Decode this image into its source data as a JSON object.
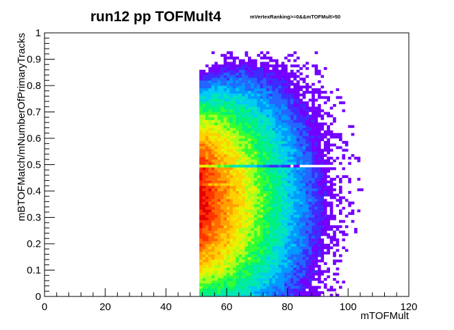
{
  "chart_data": {
    "type": "heatmap",
    "title": "run12 pp TOFMult4",
    "subtitle": "mVertexRanking>=0&&mTOFMult>50",
    "xlabel": "mTOFMult",
    "ylabel": "mBTOFMatch/mNumberOfPrimaryTracks",
    "xlim": [
      0,
      120
    ],
    "ylim": [
      0,
      1
    ],
    "x_ticks": [
      "0",
      "20",
      "40",
      "60",
      "80",
      "100",
      "120"
    ],
    "y_ticks": [
      "0",
      "0.1",
      "0.2",
      "0.3",
      "0.4",
      "0.5",
      "0.6",
      "0.7",
      "0.8",
      "0.9",
      "1"
    ],
    "x_bin_width": 1,
    "y_bin_width": 0.01,
    "colormap": "rainbow",
    "palette": [
      "#7300ff",
      "#3d2bff",
      "#2266ff",
      "#0099ff",
      "#00ccf2",
      "#00e6b8",
      "#00f27a",
      "#33ff33",
      "#a6ff1a",
      "#e6f200",
      "#ffd000",
      "#ffa000",
      "#ff6a00",
      "#ff3300",
      "#e60000"
    ],
    "density_peak": {
      "x": 51,
      "y": 0.37
    },
    "x_start": 51,
    "x_max_observed": 114,
    "y_max_observed": 0.93,
    "grid": false,
    "legend": "none"
  }
}
